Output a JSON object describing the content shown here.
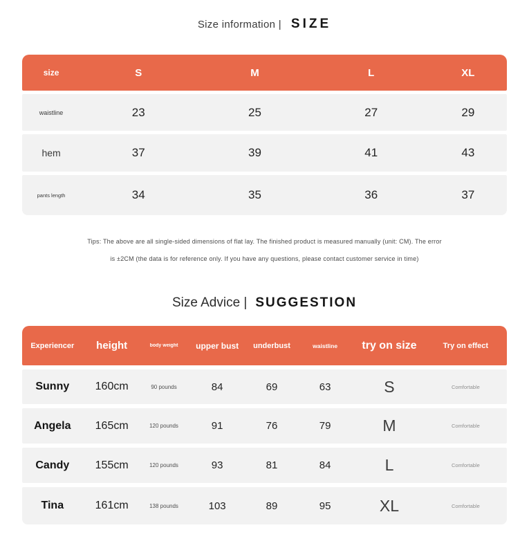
{
  "colors": {
    "accent_orange": "#E8694A",
    "row_gray": "#F2F2F2"
  },
  "section1": {
    "title_normal": "Size information |",
    "title_bold": "SIZE",
    "table": {
      "header": [
        "size",
        "S",
        "M",
        "L",
        "XL"
      ],
      "rows": [
        {
          "label": "waistline",
          "values": [
            "23",
            "25",
            "27",
            "29"
          ]
        },
        {
          "label": "hem",
          "values": [
            "37",
            "39",
            "41",
            "43"
          ]
        },
        {
          "label": "pants length",
          "values": [
            "34",
            "35",
            "36",
            "37"
          ]
        }
      ]
    },
    "tips_line1": "Tips: The above are all single-sided dimensions of flat lay. The finished product is measured manually (unit: CM). The error",
    "tips_line2": "is ±2CM (the data is for reference only. If you have any questions, please contact customer service in time)"
  },
  "section2": {
    "title_normal": "Size Advice |",
    "title_bold": "SUGGESTION",
    "table": {
      "headers": [
        "Experiencer",
        "height",
        "body weight",
        "upper bust",
        "underbust",
        "waistline",
        "try on size",
        "Try on effect"
      ],
      "rows": [
        [
          "Sunny",
          "160cm",
          "90 pounds",
          "84",
          "69",
          "63",
          "S",
          "Comfortable"
        ],
        [
          "Angela",
          "165cm",
          "120 pounds",
          "91",
          "76",
          "79",
          "M",
          "Comfortable"
        ],
        [
          "Candy",
          "155cm",
          "120 pounds",
          "93",
          "81",
          "84",
          "L",
          "Comfortable"
        ],
        [
          "Tina",
          "161cm",
          "138 pounds",
          "103",
          "89",
          "95",
          "XL",
          "Comfortable"
        ]
      ]
    }
  }
}
